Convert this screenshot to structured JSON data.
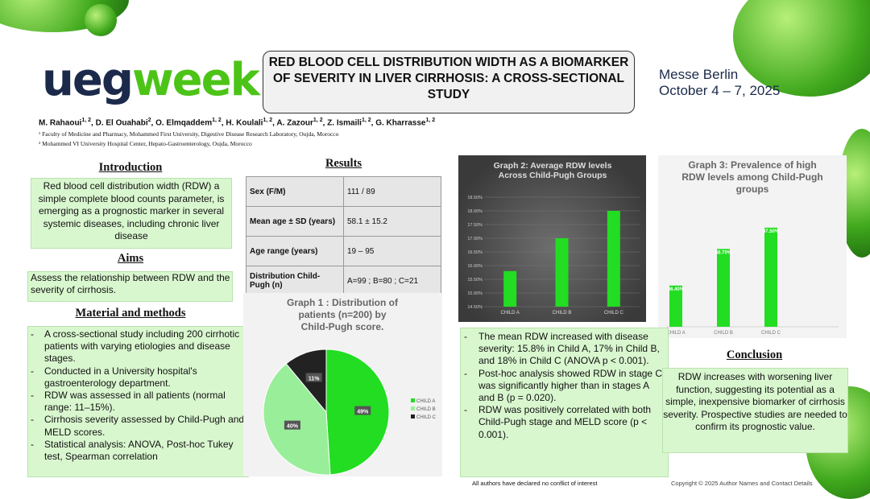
{
  "header": {
    "logo_part1": "ueg",
    "logo_part2": "week",
    "title": "RED BLOOD CELL DISTRIBUTION WIDTH AS A BIOMARKER OF SEVERITY IN LIVER CIRRHOSIS: A CROSS-SECTIONAL STUDY",
    "venue_line1": "Messe Berlin",
    "venue_line2": "October 4 – 7, 2025"
  },
  "authors": [
    {
      "name": "M. Rahaoui",
      "sup": "1, 2"
    },
    {
      "name": "D. El Ouahabi",
      "sup": "2"
    },
    {
      "name": "O. Elmqaddem",
      "sup": "1, 2"
    },
    {
      "name": "H. Koulali",
      "sup": "1, 2"
    },
    {
      "name": "A. Zazour",
      "sup": "1, 2"
    },
    {
      "name": "Z. Ismaili",
      "sup": "1, 2"
    },
    {
      "name": "G. Kharrasse",
      "sup": "1, 2"
    }
  ],
  "affiliations": [
    "¹ Faculty of Medicine and Pharmacy, Mohammed First University, Digestive Disease Research Laboratory, Oujda, Morocco",
    "² Mohammed VI University Hospital Center, Hepato-Gastroenterology, Oujda, Morocco"
  ],
  "introduction": {
    "heading": "Introduction",
    "text": "Red blood cell distribution width (RDW) a simple complete blood counts parameter, is emerging as a prognostic marker in several systemic diseases, including chronic liver disease"
  },
  "aims": {
    "heading": "Aims",
    "text": "Assess the relationship between RDW and the severity of cirrhosis."
  },
  "methods": {
    "heading": "Material and methods",
    "items": [
      "A cross-sectional study including 200 cirrhotic  patients with varying etiologies and disease stages.",
      "Conducted in a University hospital's gastroenterology department.",
      "RDW was assessed in all patients (normal range: 11–15%).",
      "Cirrhosis severity assessed by Child-Pugh and MELD scores.",
      "Statistical analysis: ANOVA, Post-hoc Tukey test, Spearman correlation"
    ]
  },
  "results": {
    "heading": "Results",
    "table": [
      {
        "label": "Sex (F/M)",
        "value": "111 / 89"
      },
      {
        "label": "Mean age ± SD (years)",
        "value": "58.1 ± 15.2"
      },
      {
        "label": "Age range (years)",
        "value": "19 – 95"
      },
      {
        "label": "Distribution Child-Pugh (n)",
        "value": "A=99 ; B=80 ; C=21"
      }
    ],
    "findings": [
      "The mean RDW increased with disease severity: 15.8% in Child A, 17% in Child B, and 18% in Child C (ANOVA p < 0.001).",
      "Post-hoc analysis showed RDW in stage C was significantly higher than in stages A and B (p = 0.020).",
      "RDW was positively correlated with both Child-Pugh stage and MELD score (p < 0.001)."
    ]
  },
  "conclusion": {
    "heading": "Conclusion",
    "text": "RDW increases with worsening liver function, suggesting its potential as a simple, inexpensive biomarker of cirrhosis severity. Prospective studies are needed to confirm its prognostic value."
  },
  "footer": {
    "conflict": "All authors have declared no conflict of interest",
    "copyright": "Copyright © 2025 Author Names and Contact Details"
  },
  "colors": {
    "accent_green": "#4cc417",
    "box_green": "#d9f7cf",
    "navy": "#1b2a4a",
    "child_a": "#22dd22",
    "child_b": "#99ee99",
    "child_c": "#222222"
  },
  "chart_data": [
    {
      "type": "pie",
      "title": "Graph 1 : Distribution of patients (n=200) by Child-Pugh score.",
      "categories": [
        "CHILD A",
        "CHILD B",
        "CHILD C"
      ],
      "values": [
        49,
        40,
        11
      ],
      "data_labels": [
        "49%",
        "40%",
        "11%"
      ],
      "legend": "right"
    },
    {
      "type": "bar",
      "title": "Graph 2: Average RDW levels Across Child-Pugh Groups",
      "categories": [
        "CHILD A",
        "CHILD B",
        "CHILD C"
      ],
      "values": [
        15.8,
        17.0,
        18.0
      ],
      "ylim": [
        14.5,
        18.5
      ],
      "yticks": [
        "14.50%",
        "15.00%",
        "15.50%",
        "16.00%",
        "16.50%",
        "17.00%",
        "17.50%",
        "18.00%",
        "18.50%"
      ],
      "grid": true
    },
    {
      "type": "bar",
      "title": "Graph 3: Prevalence of high RDW levels among Child-Pugh groups",
      "categories": [
        "CHILD A",
        "CHILD B",
        "CHILD C"
      ],
      "values": [
        36.4,
        68.7,
        87.5
      ],
      "data_labels": [
        "36.40%",
        "68.70%",
        "87.50%"
      ],
      "ylim": [
        0,
        100
      ]
    }
  ]
}
